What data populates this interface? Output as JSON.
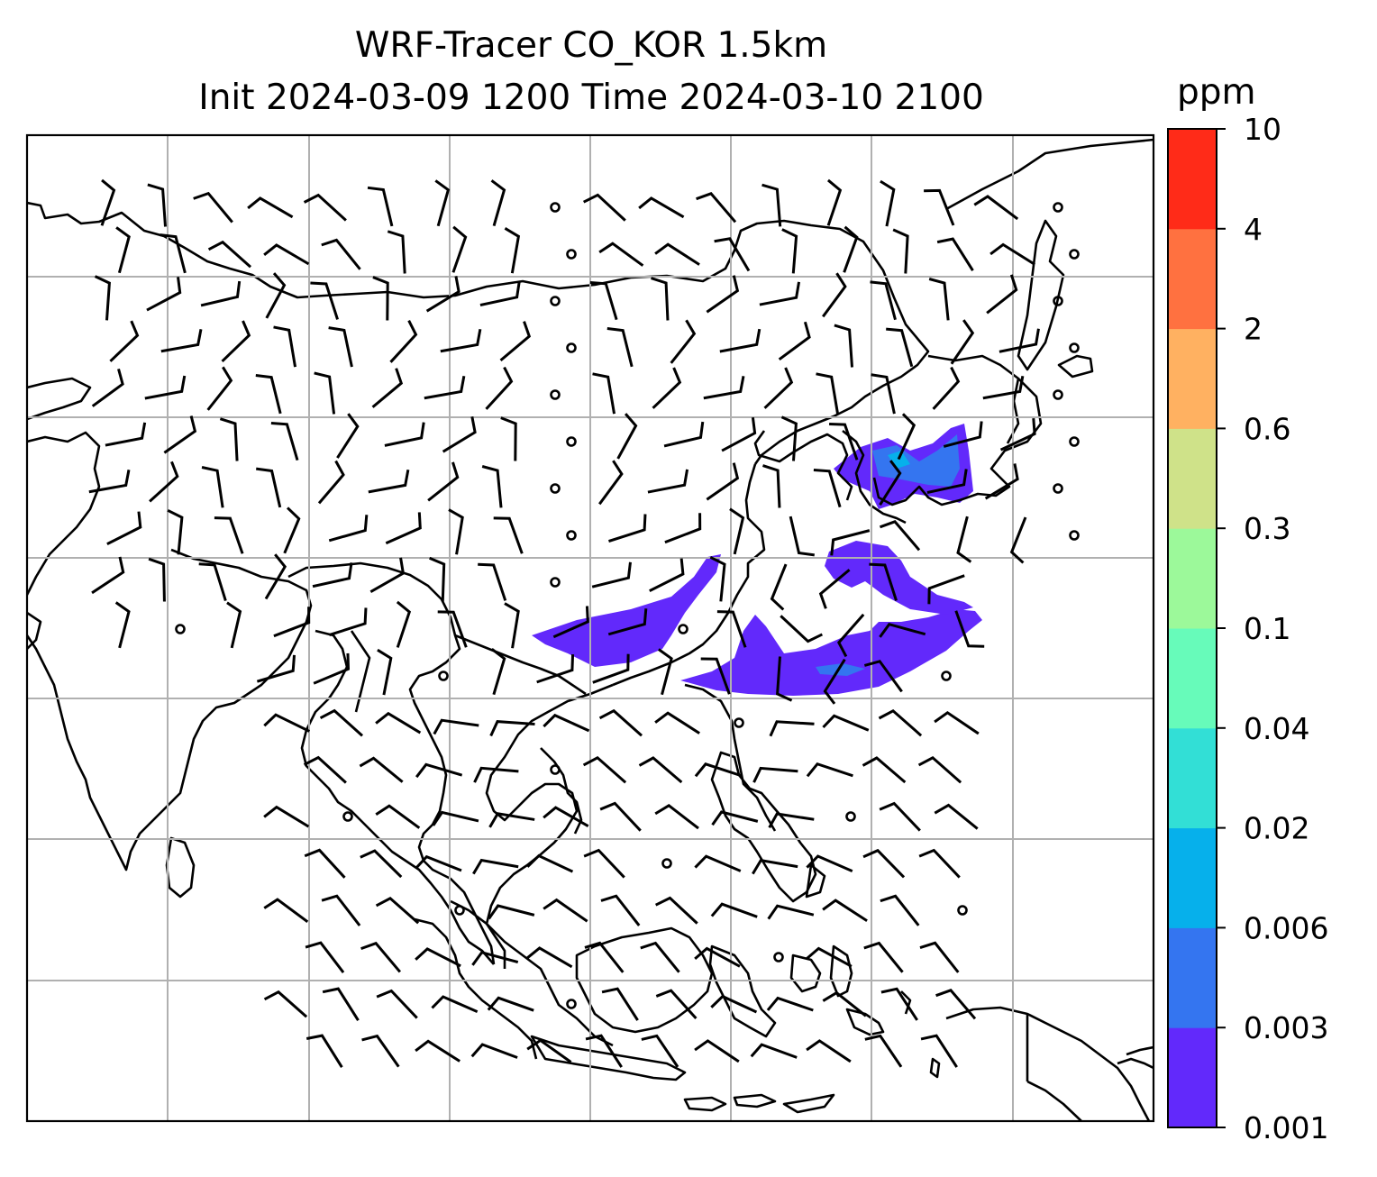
{
  "title": {
    "line1": "WRF-Tracer CO_KOR 1.5km",
    "line2": "Init 2024-03-09 1200 Time 2024-03-10 2100"
  },
  "colorbar": {
    "unit": "ppm",
    "levels": [
      "0.001",
      "0.003",
      "0.006",
      "0.02",
      "0.04",
      "0.1",
      "0.3",
      "0.6",
      "2",
      "4",
      "10"
    ],
    "colors": [
      "#6229fb",
      "#3475f0",
      "#06b0eb",
      "#32dfd6",
      "#67fbba",
      "#9cf99a",
      "#cfe289",
      "#ffb161",
      "#ff7140",
      "#ff2b18"
    ]
  },
  "colors": {
    "plume": "#6229fb",
    "plume_low": "#3475f0",
    "plume_mid": "#06b0eb",
    "coast": "#000000",
    "grid": "#b0b0b0"
  }
}
